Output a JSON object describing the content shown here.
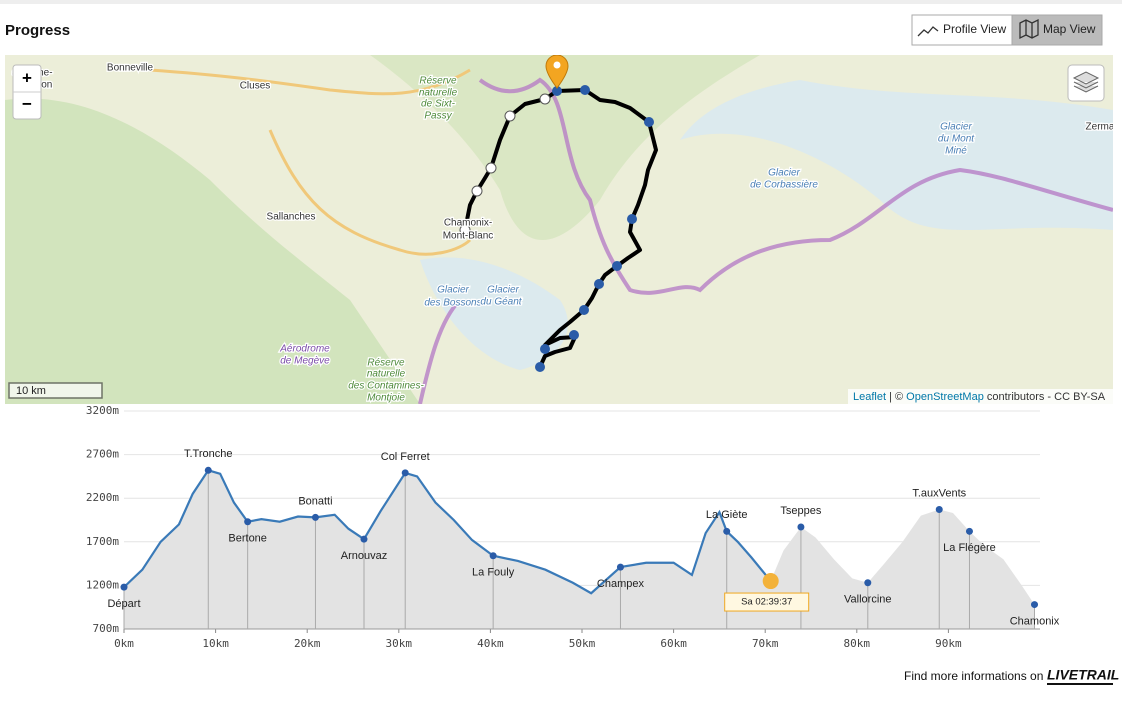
{
  "header": {
    "title": "Progress",
    "buttons": [
      "Profile View",
      "Map View"
    ]
  },
  "map": {
    "zoom": [
      "+",
      "−"
    ],
    "scale": "10 km",
    "attribution": {
      "leaflet": "Leaflet",
      "sep": " | © ",
      "osm": "OpenStreetMap",
      "rest": " contributors - CC BY-SA"
    },
    "labels": [
      "a Roche-",
      "ur-Foron",
      "Bonneville",
      "Cluses",
      "Réserve",
      "naturelle",
      "de Sixt-",
      "Passy",
      "Sallanches",
      "Chamonix-",
      "Mont-Blanc",
      "Glacier",
      "des Bossons",
      "Glacier",
      "du Géant",
      "Aérodrome",
      "de Megève",
      "Réserve",
      "naturelle",
      "des Contamines-",
      "Montjoie",
      "Glacier",
      "de Corbassière",
      "Glacier",
      "du Mont",
      "Miné",
      "Zerma"
    ]
  },
  "profile": {
    "yticks": [
      {
        "value": 3200,
        "label": "3200m"
      },
      {
        "value": 2700,
        "label": "2700m"
      },
      {
        "value": 2200,
        "label": "2200m"
      },
      {
        "value": 1700,
        "label": "1700m"
      },
      {
        "value": 1200,
        "label": "1200m"
      },
      {
        "value": 700,
        "label": "700m"
      }
    ],
    "ylim": [
      700,
      3200
    ],
    "xticks": [
      {
        "value": 0,
        "label": "0km"
      },
      {
        "value": 10,
        "label": "10km"
      },
      {
        "value": 20,
        "label": "20km"
      },
      {
        "value": 30,
        "label": "30km"
      },
      {
        "value": 40,
        "label": "40km"
      },
      {
        "value": 50,
        "label": "50km"
      },
      {
        "value": 60,
        "label": "60km"
      },
      {
        "value": 70,
        "label": "70km"
      },
      {
        "value": 80,
        "label": "80km"
      },
      {
        "value": 90,
        "label": "90km"
      }
    ],
    "xlim": [
      0,
      100
    ],
    "km": [
      0,
      2,
      4,
      6,
      7.5,
      9.2,
      10.5,
      12,
      13.5,
      15,
      17,
      19,
      20.9,
      23,
      24.5,
      26.2,
      28,
      30.7,
      32,
      34,
      36,
      38,
      40.3,
      43,
      46,
      49,
      51,
      54.2,
      57,
      60,
      62,
      63.5,
      65,
      65.8,
      67,
      68.5,
      70.6,
      72,
      73.9,
      75.5,
      77.5,
      79.5,
      81.2,
      83,
      85,
      87,
      89,
      90.5,
      92.3,
      94,
      96,
      98,
      99.4
    ],
    "elevation": [
      1180,
      1380,
      1700,
      1900,
      2250,
      2520,
      2480,
      2150,
      1930,
      1960,
      1930,
      1990,
      1980,
      2010,
      1850,
      1730,
      2050,
      2490,
      2450,
      2150,
      1950,
      1720,
      1540,
      1480,
      1380,
      1230,
      1110,
      1410,
      1460,
      1460,
      1320,
      1800,
      2040,
      1820,
      1700,
      1520,
      1250,
      1600,
      1870,
      1750,
      1500,
      1280,
      1230,
      1450,
      1700,
      2000,
      2070,
      2030,
      1820,
      1650,
      1500,
      1200,
      980
    ],
    "progress_km": 70.6,
    "checkpoints": [
      {
        "name": "Départ",
        "km": 0,
        "elevation": 1180
      },
      {
        "name": "T.Tronche",
        "km": 9.2,
        "elevation": 2520
      },
      {
        "name": "Bertone",
        "km": 13.5,
        "elevation": 1930
      },
      {
        "name": "Bonatti",
        "km": 20.9,
        "elevation": 1980
      },
      {
        "name": "Arnouvaz",
        "km": 26.2,
        "elevation": 1730
      },
      {
        "name": "Col Ferret",
        "km": 30.7,
        "elevation": 2490
      },
      {
        "name": "La Fouly",
        "km": 40.3,
        "elevation": 1540
      },
      {
        "name": "Champex",
        "km": 54.2,
        "elevation": 1410
      },
      {
        "name": "La Giète",
        "km": 65.8,
        "elevation": 1820
      },
      {
        "name": "Tseppes",
        "km": 73.9,
        "elevation": 1870
      },
      {
        "name": "Vallorcine",
        "km": 81.2,
        "elevation": 1230
      },
      {
        "name": "T.auxVents",
        "km": 89,
        "elevation": 2070
      },
      {
        "name": "La Flégère",
        "km": 92.3,
        "elevation": 1820
      },
      {
        "name": "Chamonix",
        "km": 99.4,
        "elevation": 980
      }
    ],
    "runner": {
      "km": 70.6,
      "elevation": 1250,
      "label": "Sa 02:39:37"
    }
  },
  "footer": {
    "text": "Find more informations on",
    "logo": "LIVETRAIL"
  }
}
